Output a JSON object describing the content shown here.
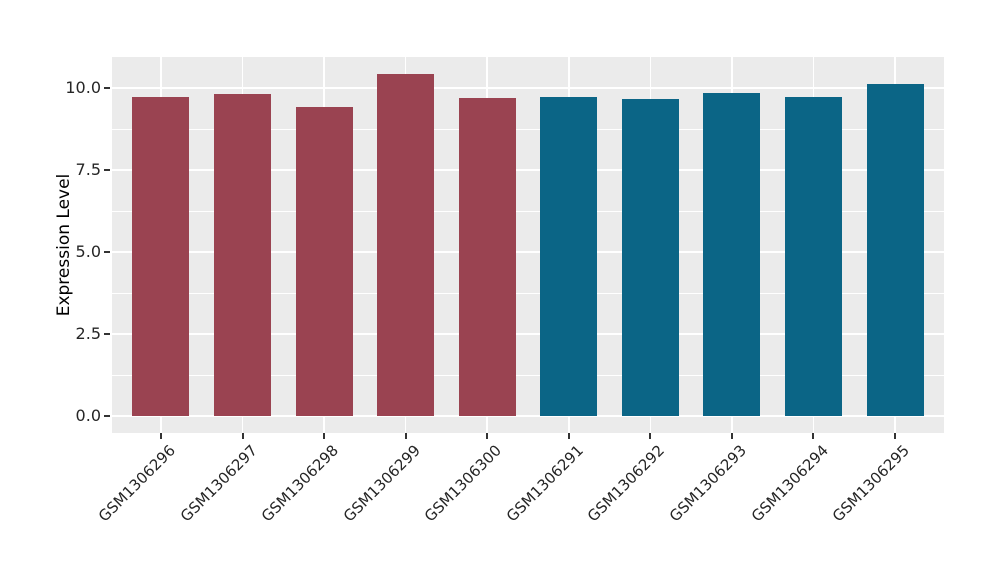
{
  "chart_data": {
    "type": "bar",
    "title": "",
    "xlabel": "",
    "ylabel": "Expression Level",
    "categories": [
      "GSM1306296",
      "GSM1306297",
      "GSM1306298",
      "GSM1306299",
      "GSM1306300",
      "GSM1306291",
      "GSM1306292",
      "GSM1306293",
      "GSM1306294",
      "GSM1306295"
    ],
    "values": [
      9.73,
      9.83,
      9.42,
      10.44,
      9.72,
      9.73,
      9.69,
      9.86,
      9.74,
      10.15
    ],
    "bar_colors": [
      "#9A4351",
      "#9A4351",
      "#9A4351",
      "#9A4351",
      "#9A4351",
      "#0B6586",
      "#0B6586",
      "#0B6586",
      "#0B6586",
      "#0B6586"
    ],
    "group_colors": {
      "left_group": "#9A4351",
      "right_group": "#0B6586"
    },
    "yticks": [
      0.0,
      2.5,
      5.0,
      7.5,
      10.0
    ],
    "ytick_labels": [
      "0.0",
      "2.5",
      "5.0",
      "7.5",
      "10.0"
    ],
    "y_minor_ticks": [
      1.25,
      3.75,
      6.25,
      8.75
    ],
    "ylim": [
      -0.52,
      10.96
    ],
    "bar_width_frac": 0.7,
    "grid": true,
    "legend": "none",
    "panel_bg": "#EBEBEB",
    "grid_color": "#FFFFFF"
  }
}
